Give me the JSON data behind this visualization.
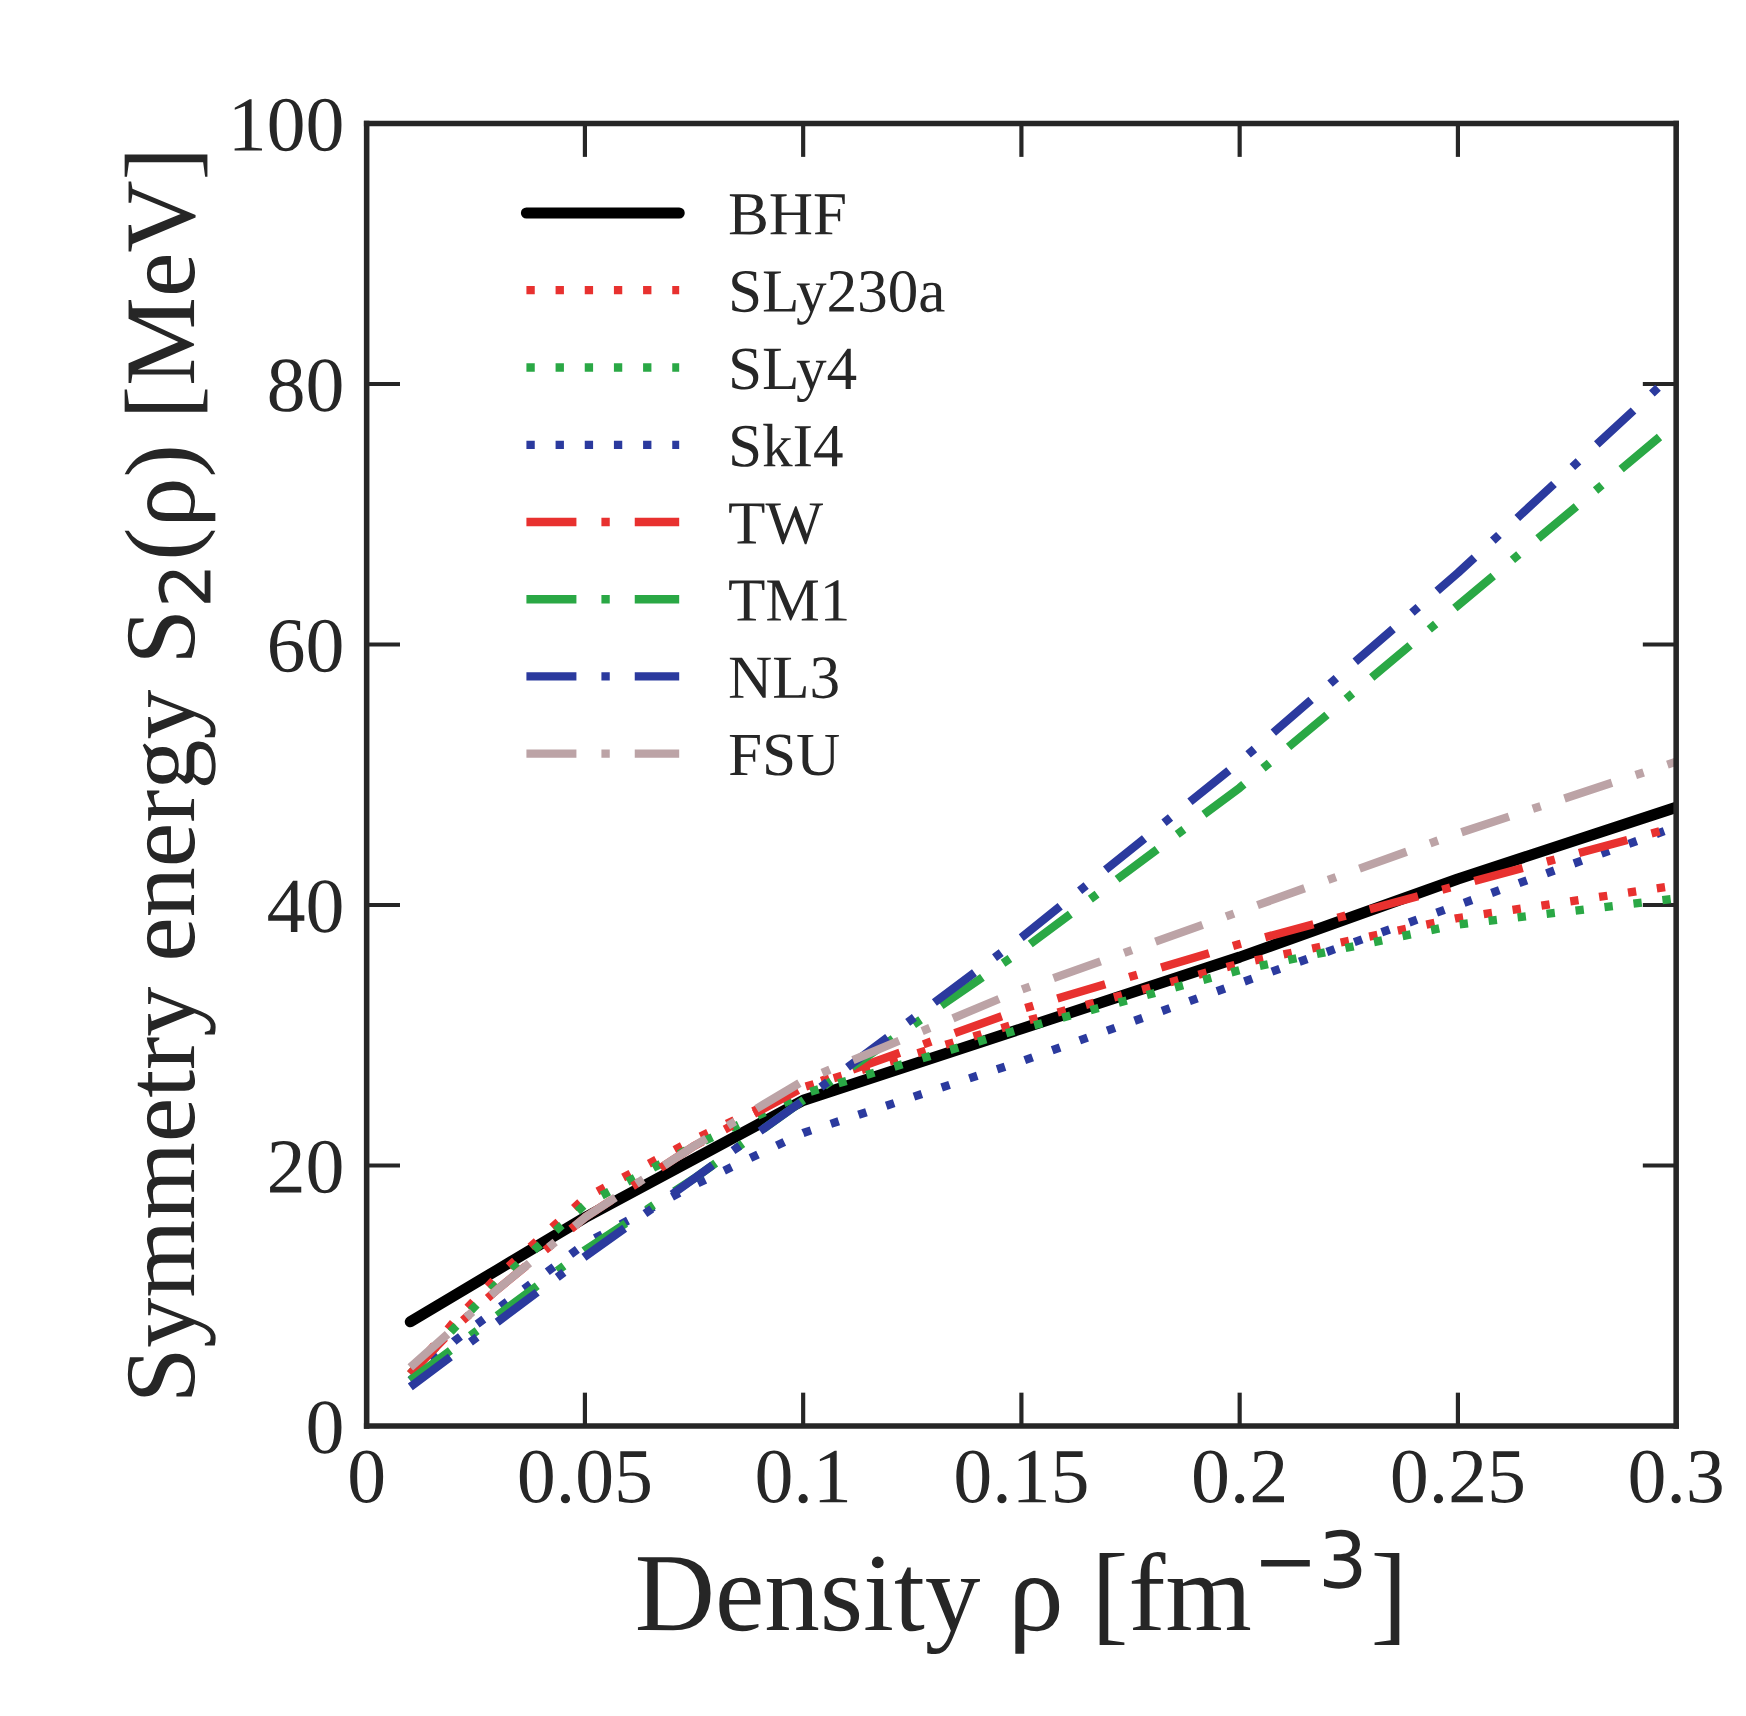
{
  "chart_data": {
    "type": "line",
    "xlabel": "Density ρ [fm$^{−3}$]",
    "ylabel": "Symmetry energy S$_{2}$(ρ) [MeV]",
    "xlim": [
      0,
      0.3
    ],
    "ylim": [
      0,
      100
    ],
    "xticks": [
      {
        "value": 0,
        "label": "0"
      },
      0.05,
      0.1,
      0.15,
      0.2,
      0.25,
      0.3
    ],
    "yticks": [
      0,
      20,
      40,
      60,
      80,
      100
    ],
    "grid": false,
    "legend": "top left",
    "series": [
      {
        "name": "BHF",
        "color": "#000000",
        "line_style": "solid",
        "x": [
          0.01,
          0.02,
          0.03,
          0.05,
          0.075,
          0.1,
          0.15,
          0.2,
          0.25,
          0.3
        ],
        "values": [
          8,
          10,
          12,
          16,
          20.5,
          25,
          30.5,
          36,
          42,
          47.5
        ]
      },
      {
        "name": "SLy230a",
        "color": "#e8312f",
        "line_style": "dotted",
        "x": [
          0.01,
          0.02,
          0.03,
          0.05,
          0.075,
          0.1,
          0.15,
          0.2,
          0.25,
          0.3
        ],
        "values": [
          4,
          8,
          11.5,
          17.5,
          22,
          26,
          31,
          35.5,
          39,
          41.5
        ]
      },
      {
        "name": "SLy4",
        "color": "#2aa845",
        "line_style": "dotted",
        "x": [
          0.01,
          0.02,
          0.03,
          0.05,
          0.075,
          0.1,
          0.15,
          0.2,
          0.25,
          0.3
        ],
        "values": [
          4,
          7.5,
          11,
          17,
          21.5,
          25.5,
          30.5,
          35,
          38.5,
          40.5
        ]
      },
      {
        "name": "SkI4",
        "color": "#2b3a9e",
        "line_style": "dotted",
        "x": [
          0.01,
          0.02,
          0.03,
          0.05,
          0.075,
          0.1,
          0.15,
          0.2,
          0.25,
          0.3
        ],
        "values": [
          3.5,
          6.5,
          9,
          14,
          18.5,
          22.5,
          28,
          34,
          40,
          46
        ]
      },
      {
        "name": "TW",
        "color": "#e8312f",
        "line_style": "dashdot",
        "x": [
          0.01,
          0.02,
          0.03,
          0.05,
          0.075,
          0.1,
          0.15,
          0.2,
          0.25,
          0.3
        ],
        "values": [
          4,
          7.5,
          10.5,
          16,
          21.5,
          26,
          32,
          37,
          41.5,
          46
        ]
      },
      {
        "name": "TM1",
        "color": "#2aa845",
        "line_style": "dashdot",
        "x": [
          0.01,
          0.02,
          0.03,
          0.05,
          0.075,
          0.1,
          0.15,
          0.2,
          0.25,
          0.3
        ],
        "values": [
          3.5,
          6,
          8.5,
          13.5,
          19,
          25,
          36.5,
          49,
          63,
          77
        ]
      },
      {
        "name": "NL3",
        "color": "#2b3a9e",
        "line_style": "dashdot",
        "x": [
          0.01,
          0.02,
          0.03,
          0.05,
          0.075,
          0.1,
          0.15,
          0.2,
          0.25,
          0.3
        ],
        "values": [
          3,
          5.5,
          8,
          13,
          19,
          25,
          37.5,
          51,
          65.5,
          81
        ]
      },
      {
        "name": "FSU",
        "color": "#bca3a6",
        "line_style": "dashdot",
        "x": [
          0.01,
          0.02,
          0.03,
          0.05,
          0.075,
          0.1,
          0.15,
          0.2,
          0.25,
          0.3
        ],
        "values": [
          4.5,
          7.5,
          10.5,
          16,
          21.5,
          26.5,
          33.5,
          39.5,
          45.5,
          51
        ]
      }
    ]
  }
}
